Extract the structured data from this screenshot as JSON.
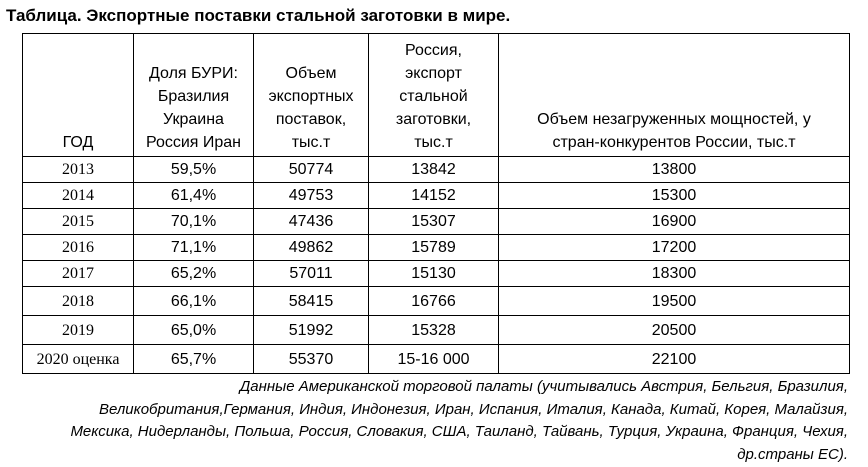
{
  "title": "Таблица. Экспортные поставки стальной заготовки в мире.",
  "table": {
    "headers": [
      "ГОД",
      "Доля БУРИ:\nБразилия\nУкраина\nРоссия Иран",
      "Объем\nэкспортных\nпоставок,\nтыс.т",
      "Россия,\nэкспорт\nстальной\nзаготовки,\nтыс.т",
      "Объем незагруженных мощностей, у\nстран-конкурентов России, тыс.т"
    ],
    "rows": [
      [
        "2013",
        "59,5%",
        "50774",
        "13842",
        "13800"
      ],
      [
        "2014",
        "61,4%",
        "49753",
        "14152",
        "15300"
      ],
      [
        "2015",
        "70,1%",
        "47436",
        "15307",
        "16900"
      ],
      [
        "2016",
        "71,1%",
        "49862",
        "15789",
        "17200"
      ],
      [
        "2017",
        "65,2%",
        "57011",
        "15130",
        "18300"
      ],
      [
        "2018",
        "66,1%",
        "58415",
        "16766",
        "19500"
      ],
      [
        "2019",
        "65,0%",
        "51992",
        "15328",
        "20500"
      ],
      [
        "2020 оценка",
        "65,7%",
        "55370",
        "15-16 000",
        "22100"
      ]
    ]
  },
  "note": [
    "Данные Американской торговой палаты (учитывались Австрия, Бельгия, Бразилия,",
    "Великобритания,Германия, Индия, Индонезия, Иран, Испания, Италия, Канада, Китай, Корея, Малайзия,",
    "Мексика, Нидерланды, Польша, Россия, Словакия, США, Таиланд, Тайвань, Турция, Украина, Франция, Чехия,",
    "др.страны ЕС)."
  ]
}
